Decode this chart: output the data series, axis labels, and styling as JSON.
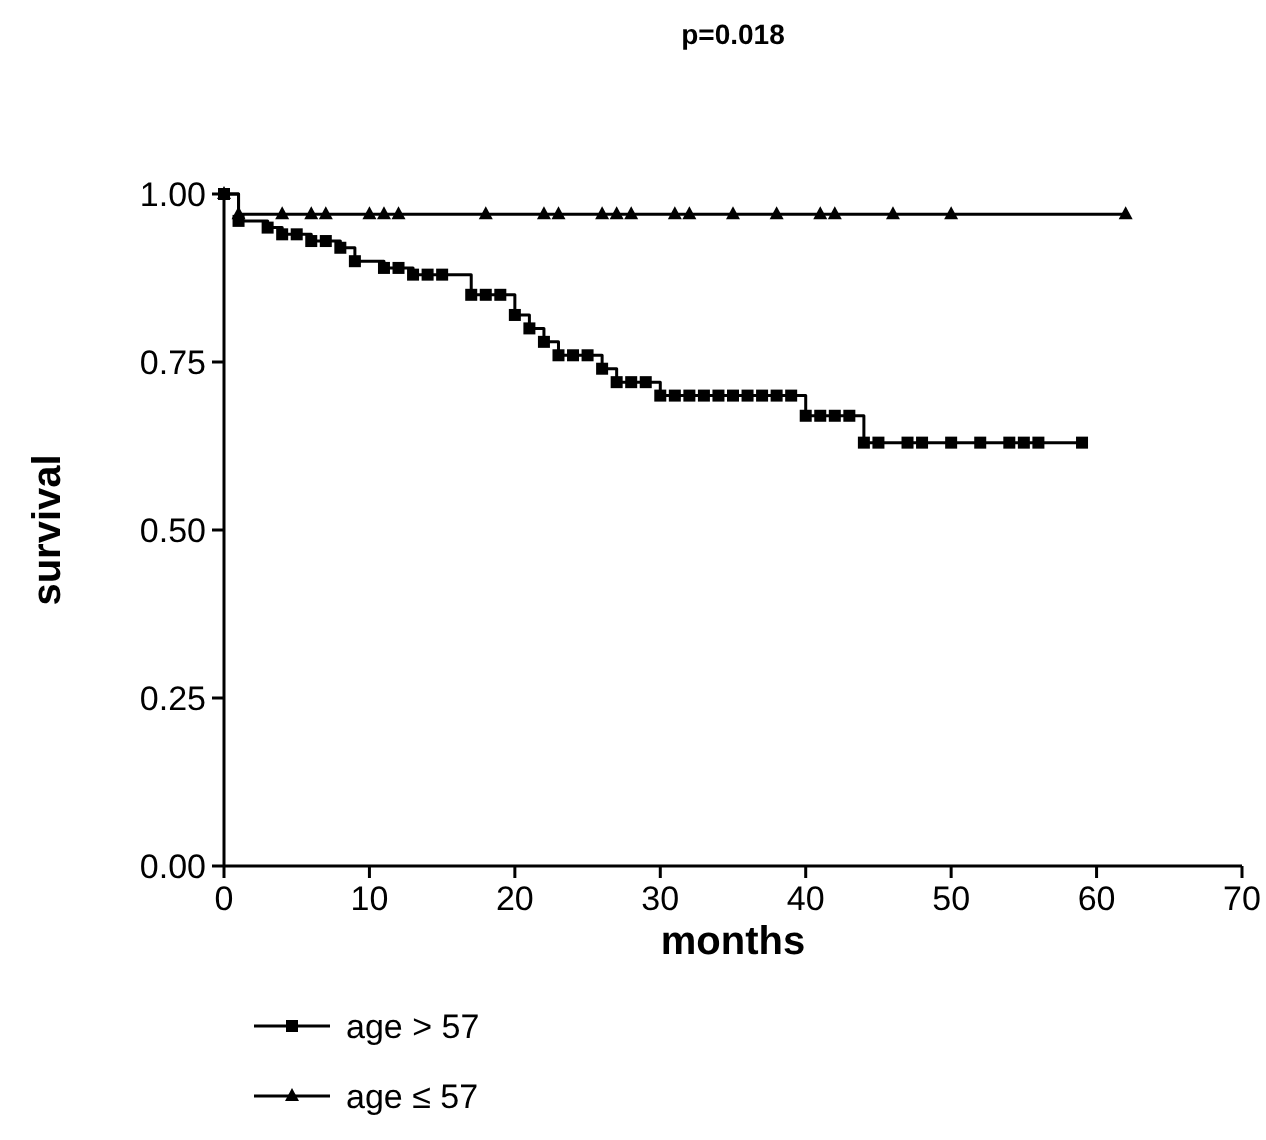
{
  "chart_data": {
    "type": "step",
    "title": "p=0.018",
    "xlabel": "months",
    "ylabel": "survival",
    "xlim": [
      0,
      70
    ],
    "xticks": [
      0,
      10,
      20,
      30,
      40,
      50,
      60,
      70
    ],
    "ylim": [
      0,
      1
    ],
    "yticks": [
      {
        "value": 0,
        "label": "0.00"
      },
      {
        "value": 0.25,
        "label": "0.25"
      },
      {
        "value": 0.5,
        "label": "0.50"
      },
      {
        "value": 0.75,
        "label": "0.75"
      },
      {
        "value": 1,
        "label": "1.00"
      }
    ],
    "grid": false,
    "legend": "bottom left",
    "line_style": "solid",
    "series": [
      {
        "name": "age > 57",
        "color": "#000000",
        "marker": "square",
        "x": [
          0,
          1,
          3,
          4,
          5,
          6,
          7,
          8,
          9,
          11,
          12,
          13,
          14,
          15,
          17,
          18,
          19,
          20,
          21,
          22,
          23,
          24,
          25,
          26,
          27,
          28,
          29,
          30,
          31,
          32,
          33,
          34,
          35,
          36,
          37,
          38,
          39,
          40,
          41,
          42,
          43,
          44,
          45,
          47,
          48,
          50,
          52,
          54,
          55,
          56,
          59
        ],
        "values": [
          1.0,
          0.96,
          0.95,
          0.94,
          0.94,
          0.93,
          0.93,
          0.92,
          0.9,
          0.89,
          0.89,
          0.88,
          0.88,
          0.88,
          0.85,
          0.85,
          0.85,
          0.82,
          0.8,
          0.78,
          0.76,
          0.76,
          0.76,
          0.74,
          0.72,
          0.72,
          0.72,
          0.7,
          0.7,
          0.7,
          0.7,
          0.7,
          0.7,
          0.7,
          0.7,
          0.7,
          0.7,
          0.67,
          0.67,
          0.67,
          0.67,
          0.63,
          0.63,
          0.63,
          0.63,
          0.63,
          0.63,
          0.63,
          0.63,
          0.63,
          0.63
        ]
      },
      {
        "name": "age ≤ 57",
        "color": "#000000",
        "marker": "triangle",
        "x": [
          0,
          1,
          4,
          6,
          7,
          10,
          11,
          12,
          18,
          22,
          23,
          26,
          27,
          28,
          31,
          32,
          35,
          38,
          41,
          42,
          46,
          50,
          62
        ],
        "values": [
          1.0,
          0.97,
          0.97,
          0.97,
          0.97,
          0.97,
          0.97,
          0.97,
          0.97,
          0.97,
          0.97,
          0.97,
          0.97,
          0.97,
          0.97,
          0.97,
          0.97,
          0.97,
          0.97,
          0.97,
          0.97,
          0.97,
          0.97
        ]
      }
    ]
  }
}
